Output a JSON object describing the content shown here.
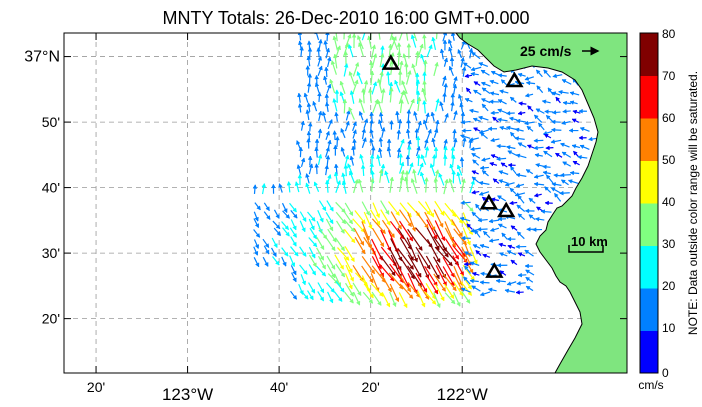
{
  "title": "MNTY Totals: 26-Dec-2010 16:00 GMT+0.000",
  "lat_labels": [
    {
      "text": "37°N",
      "lat": 37.0,
      "major": true
    },
    {
      "text": "50'",
      "lat": 36.8333,
      "major": false
    },
    {
      "text": "40'",
      "lat": 36.6667,
      "major": false
    },
    {
      "text": "30'",
      "lat": 36.5,
      "major": false
    },
    {
      "text": "20'",
      "lat": 36.3333,
      "major": false
    }
  ],
  "lon_labels": [
    {
      "text": "20'",
      "lon": -123.3333,
      "major": false
    },
    {
      "text": "123°W",
      "lon": -123.0,
      "major": true
    },
    {
      "text": "40'",
      "lon": -122.6667,
      "major": false
    },
    {
      "text": "20'",
      "lon": -122.3333,
      "major": false
    },
    {
      "text": "122°W",
      "lon": -122.0,
      "major": true
    }
  ],
  "extent": {
    "lon_min": -123.45,
    "lon_max": -121.4,
    "lat_min": 36.195,
    "lat_max": 37.06
  },
  "scale_arrow_label": "25 cm/s",
  "scale_bar_label": "10 km",
  "colorbar": {
    "ticks": [
      "80",
      "70",
      "60",
      "50",
      "40",
      "30",
      "20",
      "10",
      "0"
    ],
    "units": "cm/s",
    "note": "NOTE: Data outside color range will be saturated.",
    "colors": [
      "#0000ff",
      "#0080ff",
      "#00ffff",
      "#80ff80",
      "#ffff00",
      "#ff8000",
      "#ff0000",
      "#800000"
    ]
  },
  "land_color": "#7fe57f",
  "stations": [
    {
      "lon": -122.26,
      "lat": 36.982
    },
    {
      "lon": -121.81,
      "lat": 36.938
    },
    {
      "lon": -121.903,
      "lat": 36.627
    },
    {
      "lon": -121.84,
      "lat": 36.607
    },
    {
      "lon": -121.883,
      "lat": 36.453
    }
  ]
}
